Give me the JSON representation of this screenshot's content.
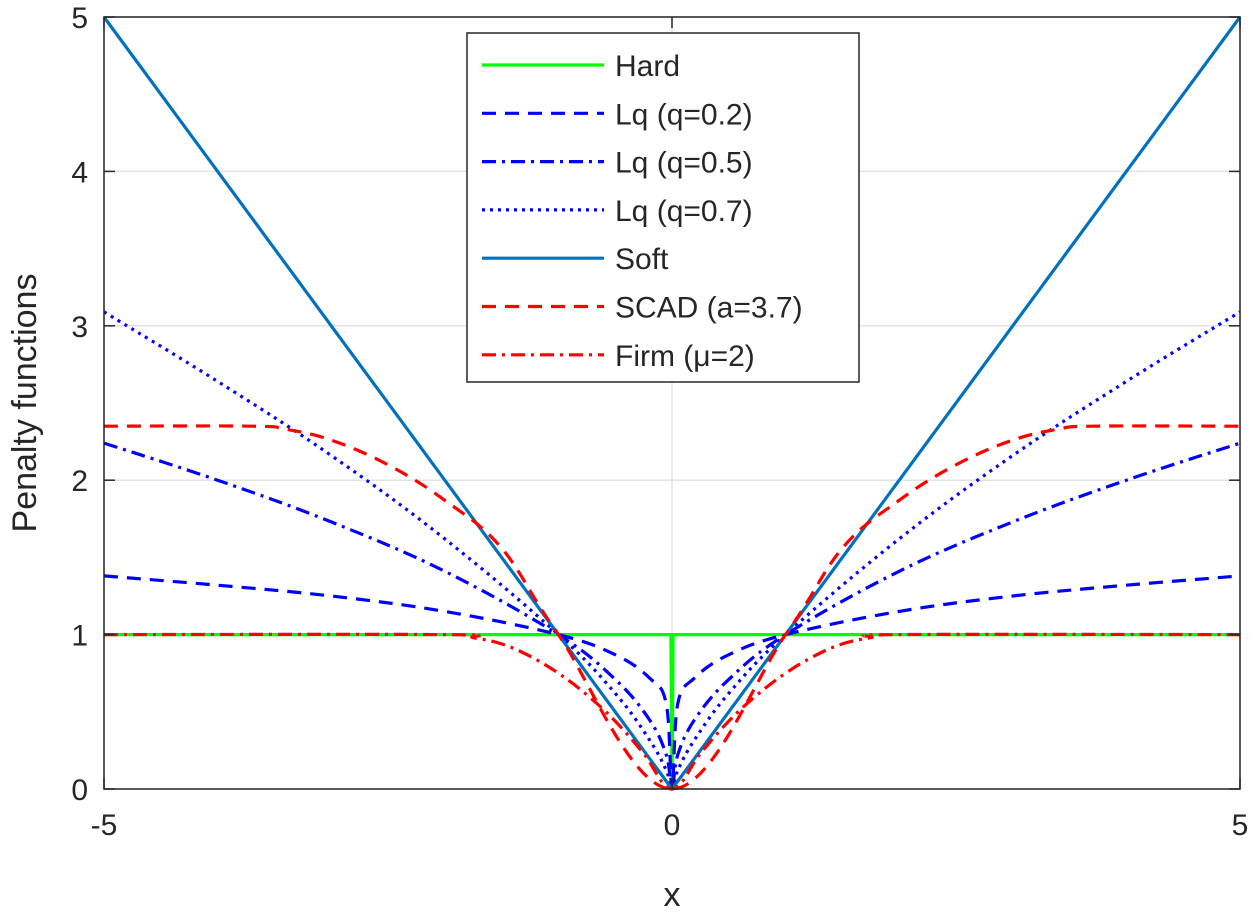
{
  "chart_data": {
    "type": "line",
    "title": "",
    "xlabel": "x",
    "ylabel": "Penalty functions",
    "xlim": [
      -5,
      5
    ],
    "ylim": [
      0,
      5
    ],
    "xticks": [
      "-5",
      "0",
      "5"
    ],
    "yticks": [
      "0",
      "1",
      "2",
      "3",
      "4",
      "5"
    ],
    "grid": true,
    "legend_position": "top-center",
    "series": [
      {
        "name": "Hard",
        "color": "#00ff00",
        "dash": "solid",
        "x": [
          -5,
          -1,
          -0.01,
          0,
          0.01,
          1,
          5
        ],
        "y": [
          1,
          1,
          1,
          0,
          1,
          1,
          1
        ]
      },
      {
        "name": "Lq (q=0.2)",
        "color": "#0000ff",
        "dash": "dashed",
        "x": [
          -5,
          -4,
          -3,
          -2,
          -1,
          -0.5,
          -0.2,
          -0.05,
          0,
          0.05,
          0.2,
          0.5,
          1,
          2,
          3,
          4,
          5
        ],
        "y": [
          1.38,
          1.32,
          1.25,
          1.15,
          1.0,
          0.87,
          0.72,
          0.55,
          0,
          0.55,
          0.72,
          0.87,
          1.0,
          1.15,
          1.25,
          1.32,
          1.38
        ]
      },
      {
        "name": "Lq (q=0.5)",
        "color": "#0000ff",
        "dash": "dashdot",
        "x": [
          -5,
          -4,
          -3,
          -2,
          -1,
          -0.5,
          -0.2,
          -0.05,
          0,
          0.05,
          0.2,
          0.5,
          1,
          2,
          3,
          4,
          5
        ],
        "y": [
          2.24,
          2.0,
          1.73,
          1.41,
          1.0,
          0.71,
          0.45,
          0.22,
          0,
          0.22,
          0.45,
          0.71,
          1.0,
          1.41,
          1.73,
          2.0,
          2.24
        ]
      },
      {
        "name": "Lq (q=0.7)",
        "color": "#0000ff",
        "dash": "dotted",
        "x": [
          -5,
          -4,
          -3,
          -2,
          -1,
          -0.5,
          -0.2,
          -0.05,
          0,
          0.05,
          0.2,
          0.5,
          1,
          2,
          3,
          4,
          5
        ],
        "y": [
          3.09,
          2.64,
          2.16,
          1.62,
          1.0,
          0.62,
          0.32,
          0.12,
          0,
          0.12,
          0.32,
          0.62,
          1.0,
          1.62,
          2.16,
          2.64,
          3.09
        ]
      },
      {
        "name": "Soft",
        "color": "#0072bd",
        "dash": "solid",
        "x": [
          -5,
          0,
          5
        ],
        "y": [
          5,
          0,
          5
        ]
      },
      {
        "name": "SCAD (a=3.7)",
        "color": "#ff0000",
        "dash": "dashed",
        "x": [
          -5,
          -3.7,
          -3.4,
          -3.0,
          -2.5,
          -2.0,
          -1.5,
          -1.0,
          0,
          1.0,
          1.5,
          2.0,
          2.5,
          3.0,
          3.4,
          3.7,
          5
        ],
        "y": [
          2.35,
          2.35,
          2.33,
          2.26,
          2.1,
          1.87,
          1.56,
          1.0,
          0,
          1.0,
          1.56,
          1.87,
          2.1,
          2.26,
          2.33,
          2.35,
          2.35
        ]
      },
      {
        "name": "Firm (μ=2)",
        "color": "#ff0000",
        "dash": "dashdot",
        "x": [
          -5,
          -2,
          -1.75,
          -1.5,
          -1.25,
          -1.0,
          -0.75,
          -0.5,
          -0.25,
          0,
          0.25,
          0.5,
          0.75,
          1.0,
          1.25,
          1.5,
          1.75,
          2,
          5
        ],
        "y": [
          1,
          1,
          0.98,
          0.94,
          0.86,
          0.75,
          0.61,
          0.44,
          0.23,
          0,
          0.23,
          0.44,
          0.61,
          0.75,
          0.86,
          0.94,
          0.98,
          1,
          1
        ]
      }
    ]
  }
}
